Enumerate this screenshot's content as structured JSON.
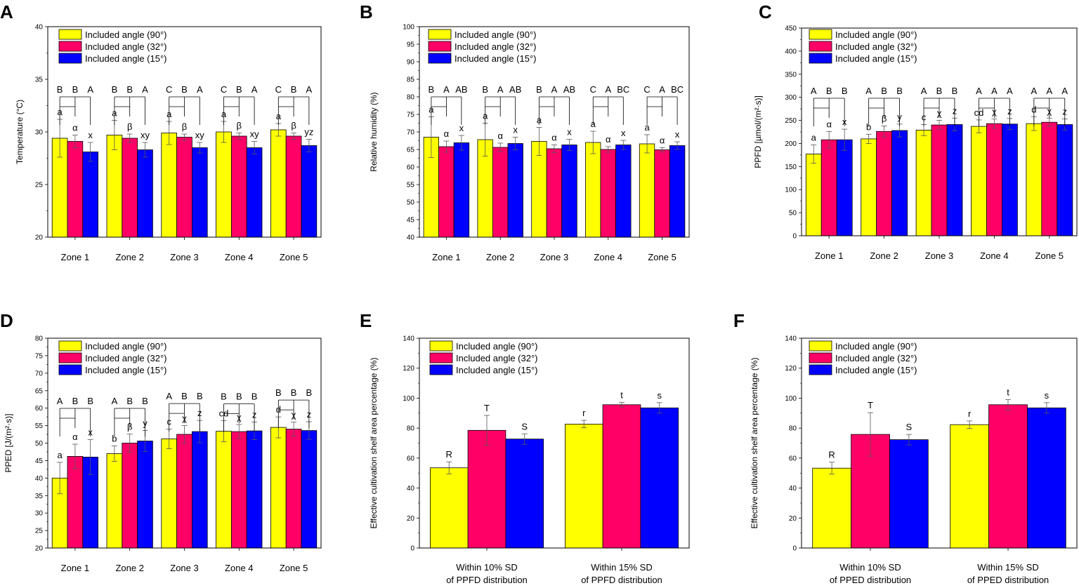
{
  "colors": {
    "s90": "#ffff00",
    "s32": "#ff0066",
    "s15": "#0000ff",
    "axis": "#000000"
  },
  "legend_labels": [
    "Included angle (90°)",
    "Included angle (32°)",
    "Included angle (15°)"
  ],
  "chart_data": [
    {
      "id": "A",
      "type": "bar",
      "letter": "A",
      "ylabel": "Temperature (°C)",
      "ylim": [
        20,
        40
      ],
      "ytick_step": 5,
      "categories": [
        "Zone 1",
        "Zone 2",
        "Zone 3",
        "Zone 4",
        "Zone 5"
      ],
      "series": [
        {
          "name": "Included angle (90°)",
          "values": [
            29.4,
            29.7,
            29.9,
            30.0,
            30.2
          ],
          "errors": [
            1.8,
            1.4,
            1.1,
            1.0,
            0.6
          ]
        },
        {
          "name": "Included angle (32°)",
          "values": [
            29.1,
            29.4,
            29.5,
            29.6,
            29.6
          ],
          "errors": [
            0.6,
            0.4,
            0.3,
            0.3,
            0.3
          ]
        },
        {
          "name": "Included angle (15°)",
          "values": [
            28.1,
            28.3,
            28.5,
            28.5,
            28.7
          ],
          "errors": [
            0.9,
            0.7,
            0.5,
            0.6,
            0.6
          ]
        }
      ],
      "point_labels": [
        [
          "a",
          "α",
          "x"
        ],
        [
          "a",
          "β",
          "xy"
        ],
        [
          "a",
          "β",
          "xy"
        ],
        [
          "a",
          "β",
          "xy"
        ],
        [
          "a",
          "β",
          "yz"
        ]
      ],
      "group_labels": [
        [
          "B",
          "B",
          "A"
        ],
        [
          "B",
          "B",
          "A"
        ],
        [
          "C",
          "B",
          "A"
        ],
        [
          "C",
          "B",
          "A"
        ],
        [
          "C",
          "B",
          "A"
        ]
      ]
    },
    {
      "id": "B",
      "type": "bar",
      "letter": "B",
      "ylabel": "Relative humidity (%)",
      "ylim": [
        40,
        100
      ],
      "ytick_step": 5,
      "categories": [
        "Zone 1",
        "Zone 2",
        "Zone 3",
        "Zone 4",
        "Zone 5"
      ],
      "series": [
        {
          "name": "Included angle (90°)",
          "values": [
            68.5,
            67.8,
            67.3,
            67.0,
            66.6
          ],
          "errors": [
            5.8,
            4.7,
            4.0,
            3.2,
            2.6
          ]
        },
        {
          "name": "Included angle (32°)",
          "values": [
            65.8,
            65.6,
            65.2,
            65.0,
            64.9
          ],
          "errors": [
            1.6,
            1.2,
            1.1,
            0.8,
            0.6
          ]
        },
        {
          "name": "Included angle (15°)",
          "values": [
            66.9,
            66.7,
            66.3,
            66.3,
            66.1
          ],
          "errors": [
            2.1,
            1.8,
            1.6,
            1.3,
            1.1
          ]
        }
      ],
      "point_labels": [
        [
          "a",
          "α",
          "x"
        ],
        [
          "a",
          "α",
          "x"
        ],
        [
          "a",
          "α",
          "x"
        ],
        [
          "a",
          "α",
          "x"
        ],
        [
          "a",
          "α",
          "x"
        ]
      ],
      "group_labels": [
        [
          "B",
          "A",
          "AB"
        ],
        [
          "B",
          "A",
          "AB"
        ],
        [
          "B",
          "A",
          "AB"
        ],
        [
          "C",
          "A",
          "BC"
        ],
        [
          "C",
          "A",
          "BC"
        ]
      ]
    },
    {
      "id": "C",
      "type": "bar",
      "letter": "C",
      "ylabel": "PPFD [µmol/(m²·s)]",
      "ylim": [
        0,
        450
      ],
      "ytick_step": 50,
      "categories": [
        "Zone 1",
        "Zone 2",
        "Zone 3",
        "Zone 4",
        "Zone 5"
      ],
      "series": [
        {
          "name": "Included angle (90°)",
          "values": [
            177,
            210,
            229,
            237,
            243
          ],
          "errors": [
            20,
            10,
            12,
            14,
            15
          ]
        },
        {
          "name": "Included angle (32°)",
          "values": [
            208,
            226,
            240,
            243,
            246
          ],
          "errors": [
            18,
            12,
            10,
            10,
            9
          ]
        },
        {
          "name": "Included angle (15°)",
          "values": [
            208,
            228,
            241,
            242,
            241
          ],
          "errors": [
            23,
            14,
            14,
            12,
            12
          ]
        }
      ],
      "point_labels": [
        [
          "a",
          "α",
          "x"
        ],
        [
          "b",
          "β",
          "y"
        ],
        [
          "c",
          "χ",
          "z"
        ],
        [
          "cd",
          "χ",
          "z"
        ],
        [
          "d",
          "χ",
          "z"
        ]
      ],
      "group_labels": [
        [
          "A",
          "B",
          "B"
        ],
        [
          "A",
          "B",
          "B"
        ],
        [
          "A",
          "B",
          "B"
        ],
        [
          "A",
          "A",
          "A"
        ],
        [
          "A",
          "A",
          "A"
        ]
      ]
    },
    {
      "id": "D",
      "type": "bar",
      "letter": "D",
      "ylabel": "PPED [J/(m²·s)]",
      "ylim": [
        20,
        80
      ],
      "ytick_step": 5,
      "categories": [
        "Zone 1",
        "Zone 2",
        "Zone 3",
        "Zone 4",
        "Zone 5"
      ],
      "series": [
        {
          "name": "Included angle (90°)",
          "values": [
            40.0,
            47.0,
            51.2,
            53.4,
            54.5
          ],
          "errors": [
            4.5,
            2.2,
            2.8,
            3.0,
            3.0
          ]
        },
        {
          "name": "Included angle (32°)",
          "values": [
            46.2,
            50.0,
            52.5,
            53.3,
            54.0
          ],
          "errors": [
            3.5,
            2.6,
            2.5,
            2.0,
            2.0
          ]
        },
        {
          "name": "Included angle (15°)",
          "values": [
            46.0,
            50.6,
            53.3,
            53.5,
            53.6
          ],
          "errors": [
            5.0,
            3.0,
            3.2,
            2.5,
            2.5
          ]
        }
      ],
      "point_labels": [
        [
          "a",
          "α",
          "x"
        ],
        [
          "b",
          "β",
          "y"
        ],
        [
          "c",
          "χ",
          "z"
        ],
        [
          "cd",
          "χ",
          "z"
        ],
        [
          "d",
          "χ",
          "z"
        ]
      ],
      "group_labels": [
        [
          "A",
          "B",
          "B"
        ],
        [
          "A",
          "B",
          "B"
        ],
        [
          "A",
          "B",
          "B"
        ],
        [
          "B",
          "B",
          "B"
        ],
        [
          "B",
          "B",
          "B"
        ]
      ]
    },
    {
      "id": "E",
      "type": "bar",
      "letter": "E",
      "ylabel": "Effective cultivation shelf area percentage (%)",
      "ylim": [
        0,
        140
      ],
      "ytick_step": 20,
      "categories": [
        [
          "Within 10% SD",
          "of PPFD distribution"
        ],
        [
          "Within 15% SD",
          "of PPFD distribution"
        ]
      ],
      "series": [
        {
          "name": "Included angle (90°)",
          "values": [
            53.5,
            82.7
          ],
          "errors": [
            4.0,
            2.5
          ]
        },
        {
          "name": "Included angle (32°)",
          "values": [
            78.5,
            95.6
          ],
          "errors": [
            10.0,
            1.5
          ]
        },
        {
          "name": "Included angle (15°)",
          "values": [
            72.7,
            93.5
          ],
          "errors": [
            3.5,
            3.5
          ]
        }
      ],
      "point_labels": [
        [
          "R",
          "T",
          "S"
        ],
        [
          "r",
          "t",
          "s"
        ]
      ]
    },
    {
      "id": "F",
      "type": "bar",
      "letter": "F",
      "ylabel": "Effective cultivation shelf area percentage (%)",
      "ylim": [
        0,
        140
      ],
      "ytick_step": 20,
      "categories": [
        [
          "Within 10% SD",
          "of PPED distribution"
        ],
        [
          "Within 15% SD",
          "of PPED distribution"
        ]
      ],
      "series": [
        {
          "name": "Included angle (90°)",
          "values": [
            53.3,
            82.3
          ],
          "errors": [
            4.0,
            2.5
          ]
        },
        {
          "name": "Included angle (32°)",
          "values": [
            75.8,
            95.6
          ],
          "errors": [
            14.5,
            3.5
          ]
        },
        {
          "name": "Included angle (15°)",
          "values": [
            72.3,
            93.5
          ],
          "errors": [
            3.5,
            3.5
          ]
        }
      ],
      "point_labels": [
        [
          "R",
          "T",
          "S"
        ],
        [
          "r",
          "t",
          "s"
        ]
      ]
    }
  ]
}
